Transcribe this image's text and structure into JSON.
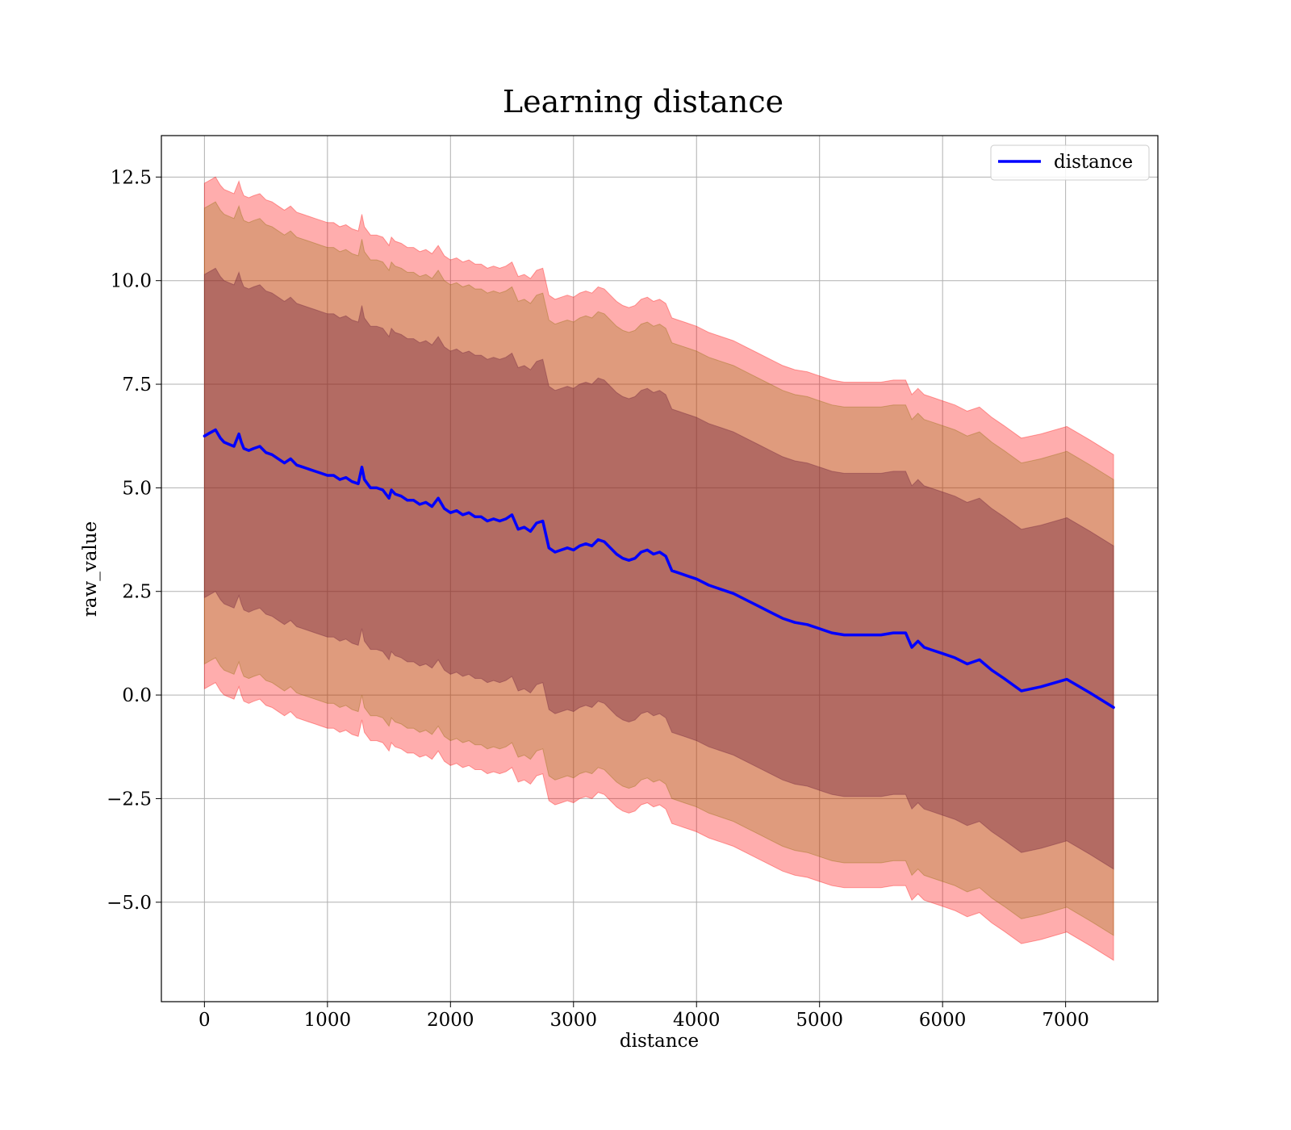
{
  "chart_data": {
    "type": "line",
    "title": "Learning distance",
    "xlabel": "distance",
    "ylabel": "raw_value",
    "xlim": [
      -350,
      7750
    ],
    "ylim": [
      -7.4,
      13.5
    ],
    "xticks": [
      0,
      1000,
      2000,
      3000,
      4000,
      5000,
      6000,
      7000
    ],
    "xtick_labels": [
      "0",
      "1000",
      "2000",
      "3000",
      "4000",
      "5000",
      "6000",
      "7000"
    ],
    "yticks": [
      -5.0,
      -2.5,
      0.0,
      2.5,
      5.0,
      7.5,
      10.0,
      12.5
    ],
    "ytick_labels": [
      "−5.0",
      "−2.5",
      "0.0",
      "2.5",
      "5.0",
      "7.5",
      "10.0",
      "12.5"
    ],
    "grid": true,
    "legend": {
      "placement": "top-right",
      "entries": [
        "distance"
      ]
    },
    "colors": {
      "line": "#0000ff",
      "band_outer": "#ff0000",
      "band_middle": "#8b6b00",
      "band_inner": "#6b1d3a",
      "grid": "#b0b0b0"
    },
    "series": [
      {
        "name": "distance",
        "x": [
          0,
          30,
          60,
          90,
          110,
          130,
          160,
          200,
          240,
          280,
          300,
          320,
          360,
          400,
          450,
          500,
          550,
          600,
          650,
          700,
          750,
          800,
          850,
          900,
          950,
          1000,
          1050,
          1100,
          1150,
          1200,
          1250,
          1280,
          1300,
          1350,
          1400,
          1450,
          1500,
          1520,
          1550,
          1600,
          1650,
          1700,
          1750,
          1800,
          1850,
          1900,
          1950,
          2000,
          2050,
          2100,
          2150,
          2200,
          2250,
          2300,
          2350,
          2400,
          2450,
          2500,
          2550,
          2600,
          2650,
          2700,
          2750,
          2800,
          2850,
          2900,
          2950,
          3000,
          3050,
          3100,
          3150,
          3200,
          3250,
          3300,
          3350,
          3400,
          3450,
          3500,
          3550,
          3600,
          3650,
          3700,
          3750,
          3800,
          3850,
          3900,
          3950,
          4000,
          4100,
          4200,
          4300,
          4400,
          4500,
          4600,
          4700,
          4800,
          4900,
          5000,
          5100,
          5200,
          5300,
          5400,
          5500,
          5600,
          5700,
          5750,
          5800,
          5850,
          5900,
          6000,
          6100,
          6200,
          6300,
          6400,
          6500,
          6640,
          6800,
          7010,
          7200,
          7390
        ],
        "values": [
          6.25,
          6.3,
          6.35,
          6.4,
          6.3,
          6.2,
          6.1,
          6.05,
          6.0,
          6.3,
          6.1,
          5.95,
          5.9,
          5.95,
          6.0,
          5.85,
          5.8,
          5.7,
          5.6,
          5.7,
          5.55,
          5.5,
          5.45,
          5.4,
          5.35,
          5.3,
          5.3,
          5.2,
          5.25,
          5.15,
          5.1,
          5.5,
          5.2,
          5.0,
          5.0,
          4.95,
          4.75,
          4.95,
          4.85,
          4.8,
          4.7,
          4.7,
          4.6,
          4.65,
          4.55,
          4.75,
          4.5,
          4.4,
          4.45,
          4.35,
          4.4,
          4.3,
          4.3,
          4.2,
          4.25,
          4.2,
          4.25,
          4.35,
          4.0,
          4.05,
          3.95,
          4.15,
          4.2,
          3.55,
          3.45,
          3.5,
          3.55,
          3.5,
          3.6,
          3.65,
          3.6,
          3.75,
          3.7,
          3.55,
          3.4,
          3.3,
          3.25,
          3.3,
          3.45,
          3.5,
          3.4,
          3.45,
          3.35,
          3.0,
          2.95,
          2.9,
          2.85,
          2.8,
          2.65,
          2.55,
          2.45,
          2.3,
          2.15,
          2.0,
          1.85,
          1.75,
          1.7,
          1.6,
          1.5,
          1.45,
          1.45,
          1.45,
          1.45,
          1.5,
          1.5,
          1.15,
          1.3,
          1.15,
          1.1,
          1.0,
          0.9,
          0.75,
          0.85,
          0.6,
          0.4,
          0.1,
          0.2,
          0.38,
          0.05,
          -0.3
        ],
        "bands": [
          {
            "level": "inner",
            "half_width": 3.9
          },
          {
            "level": "middle",
            "half_width": 5.5
          },
          {
            "level": "outer",
            "half_width": 6.1
          }
        ]
      }
    ]
  }
}
